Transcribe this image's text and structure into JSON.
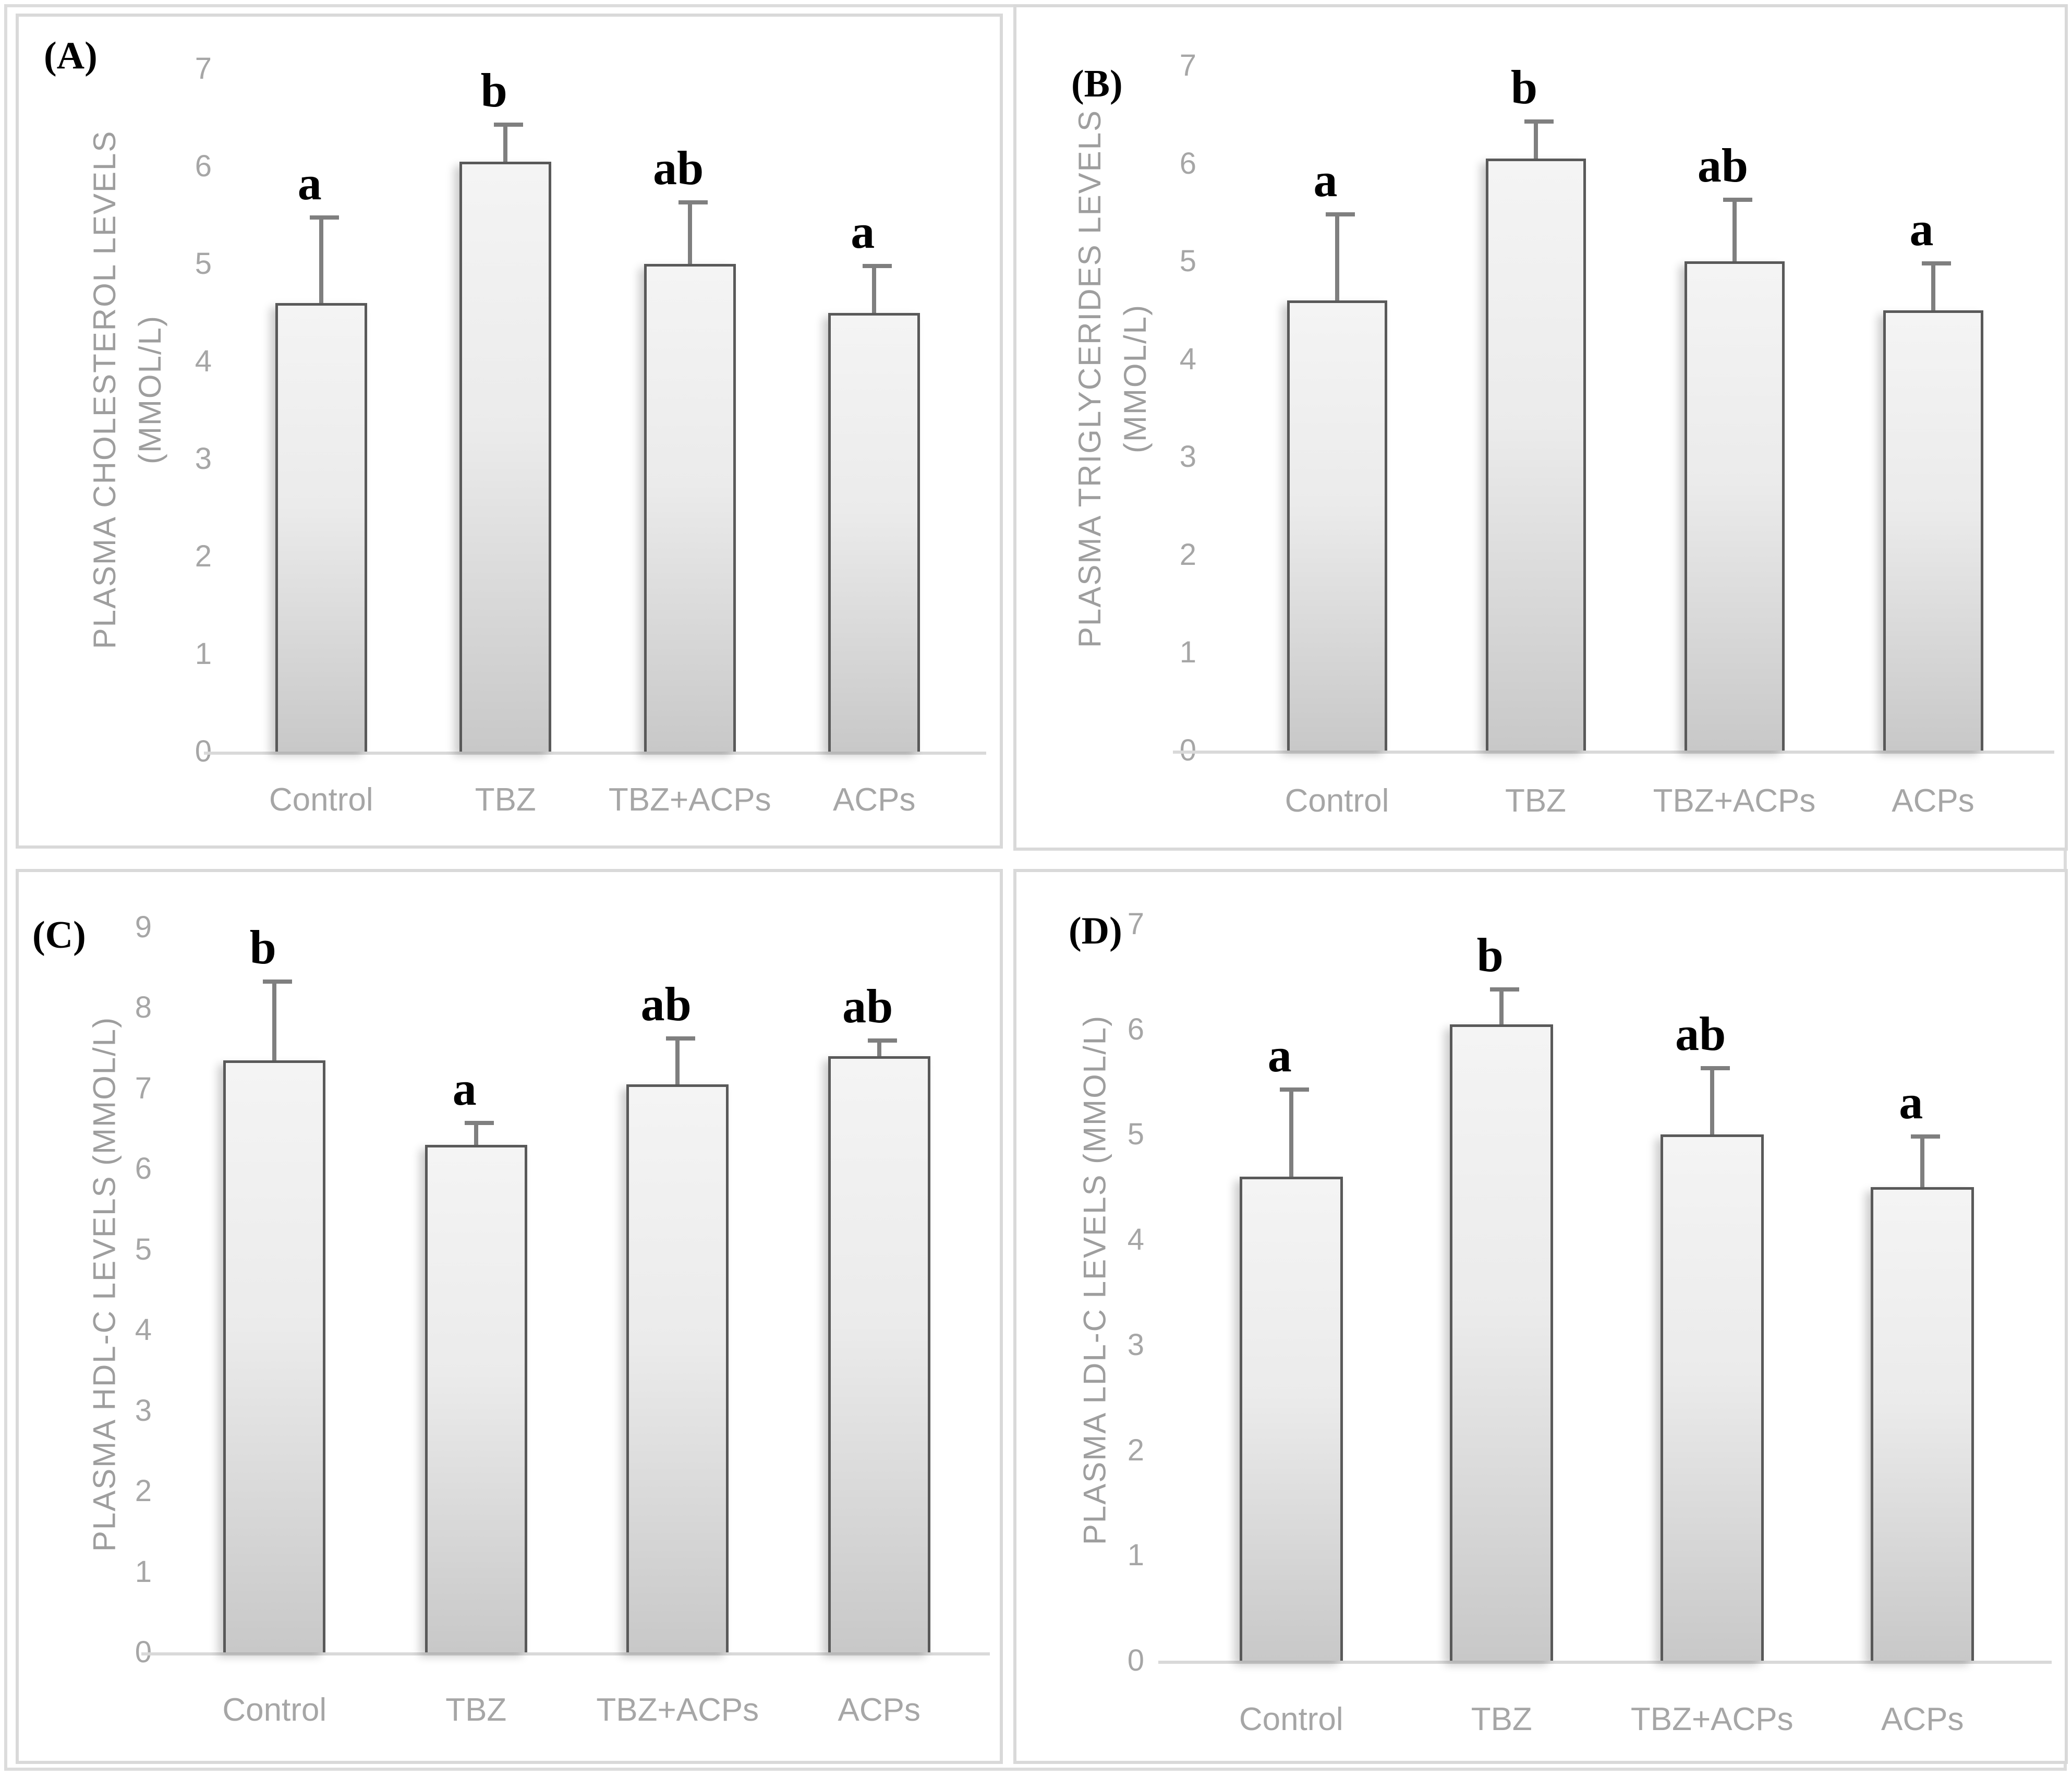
{
  "figure_title": "Plasma lipid profile bar charts",
  "colors": {
    "panel_border": "#d9d9d9",
    "axis_line": "#d9d9d9",
    "bar_fill_top": "#f4f4f4",
    "bar_fill_bottom": "#c8c8c8",
    "bar_border": "#595959",
    "error_bar": "#7f7f7f",
    "tick_text": "#a6a6a6",
    "category_text": "#a6a6a6",
    "axis_title_text": "#9e9e9e",
    "sig_letter_text": "#000000",
    "panel_label_text": "#000000"
  },
  "chart_data": [
    {
      "type": "bar",
      "panel_label": "(A)",
      "ylabel": "PLASMA CHOLESTEROL LEVELS (MMOL/L)",
      "ylabel_lines": [
        "PLASMA CHOLESTEROL LEVELS",
        "(MMOL/L)"
      ],
      "categories": [
        "Control",
        "TBZ",
        "TBZ+ACPs",
        "ACPs"
      ],
      "values": [
        4.6,
        6.05,
        5.0,
        4.5
      ],
      "errors_top": [
        5.5,
        6.45,
        5.65,
        5.0
      ],
      "sig_letters": [
        "a",
        "b",
        "ab",
        "a"
      ],
      "ylim": [
        0,
        7
      ],
      "ytick_step": 1,
      "grid": false,
      "legend": false
    },
    {
      "type": "bar",
      "panel_label": "(B)",
      "ylabel": "PLASMA TRIGLYCERIDES LEVELS (MMOL/L)",
      "ylabel_lines": [
        "PLASMA TRIGLYCERIDES LEVELS",
        "(MMOL/L)"
      ],
      "categories": [
        "Control",
        "TBZ",
        "TBZ+ACPs",
        "ACPs"
      ],
      "values": [
        4.6,
        6.05,
        5.0,
        4.5
      ],
      "errors_top": [
        5.5,
        6.45,
        5.65,
        5.0
      ],
      "sig_letters": [
        "a",
        "b",
        "ab",
        "a"
      ],
      "ylim": [
        0,
        7
      ],
      "ytick_step": 1,
      "grid": false,
      "legend": false
    },
    {
      "type": "bar",
      "panel_label": "(C)",
      "ylabel": "PLASMA HDL-C LEVELS (MMOL/L)",
      "ylabel_lines": [
        "PLASMA HDL-C LEVELS (MMOL/L)"
      ],
      "categories": [
        "Control",
        "TBZ",
        "TBZ+ACPs",
        "ACPs"
      ],
      "values": [
        7.35,
        6.3,
        7.05,
        7.4
      ],
      "errors_top": [
        8.35,
        6.6,
        7.65,
        7.62
      ],
      "sig_letters": [
        "b",
        "a",
        "ab",
        "ab"
      ],
      "ylim": [
        0,
        9
      ],
      "ytick_step": 1,
      "grid": false,
      "legend": false
    },
    {
      "type": "bar",
      "panel_label": "(D)",
      "ylabel": "PLASMA LDL-C LEVELS (MMOL/L)",
      "ylabel_lines": [
        "PLASMA LDL-C LEVELS (MMOL/L)"
      ],
      "categories": [
        "Control",
        "TBZ",
        "TBZ+ACPs",
        "ACPs"
      ],
      "values": [
        4.6,
        6.05,
        5.0,
        4.5
      ],
      "errors_top": [
        5.45,
        6.4,
        5.65,
        5.0
      ],
      "sig_letters": [
        "a",
        "b",
        "ab",
        "a"
      ],
      "ylim": [
        0,
        7
      ],
      "ytick_step": 1,
      "grid": false,
      "legend": false
    }
  ]
}
